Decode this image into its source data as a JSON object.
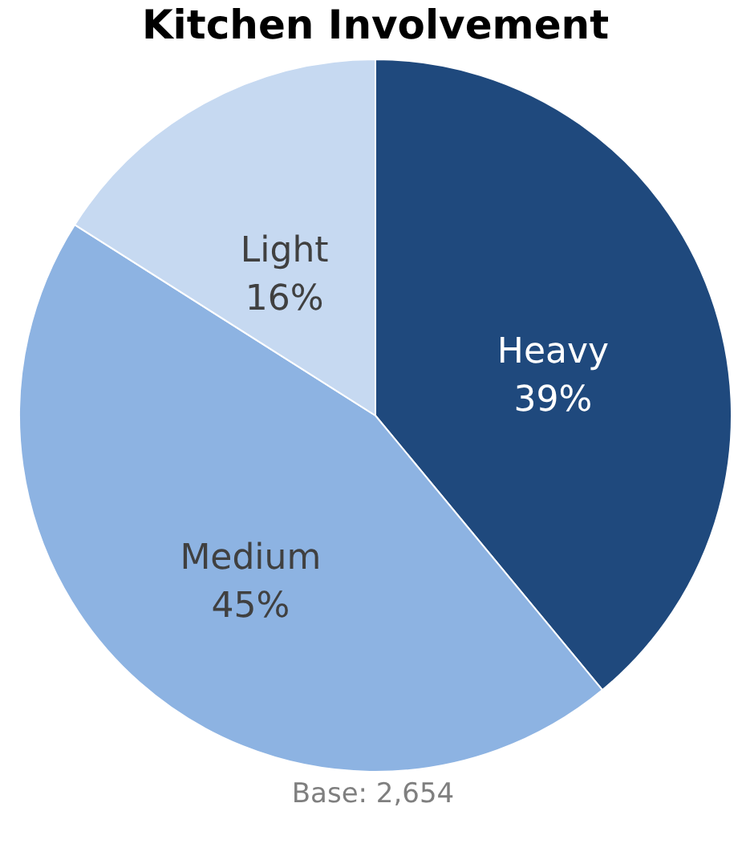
{
  "chart_data": {
    "type": "pie",
    "title": "Kitchen Involvement",
    "categories": [
      "Heavy",
      "Medium",
      "Light"
    ],
    "values": [
      39,
      45,
      16
    ],
    "colors": [
      "#1f497d",
      "#8db3e2",
      "#c6d9f1"
    ],
    "value_labels": [
      "39%",
      "45%",
      "16%"
    ],
    "annotations": [
      "Base: 2,654"
    ],
    "legend": false
  }
}
